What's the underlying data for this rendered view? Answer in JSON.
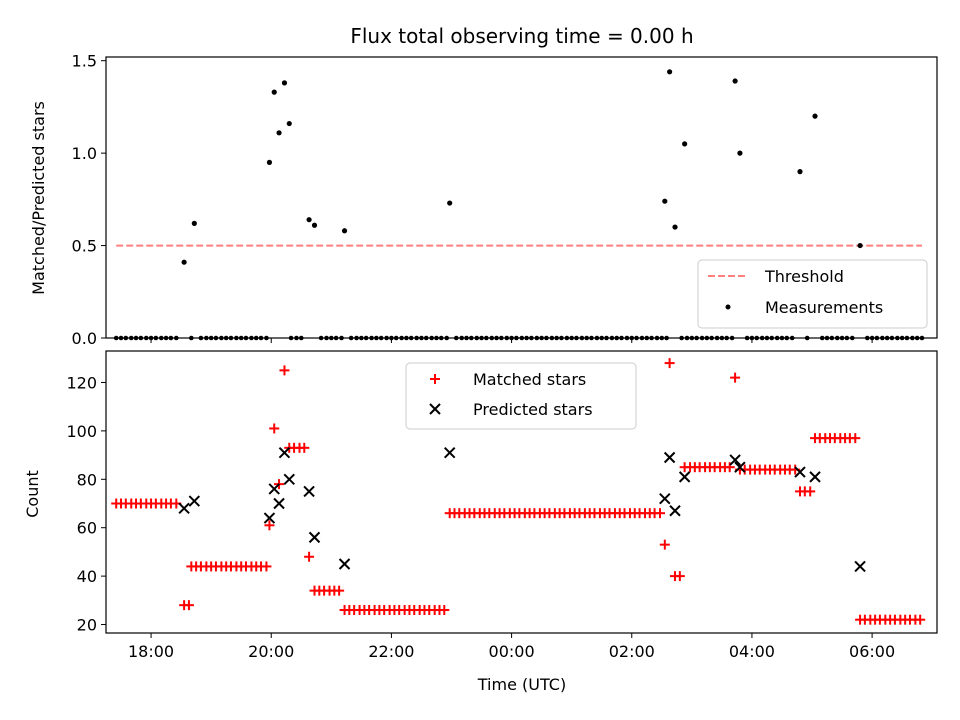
{
  "chart_data": [
    {
      "type": "scatter",
      "title": "Flux total observing time = 0.00 h",
      "xlabel": "",
      "ylabel": "Matched/Predicted stars",
      "xlim": [
        17.25,
        31.08
      ],
      "ylim": [
        0,
        1.52
      ],
      "yticks": [
        0.0,
        0.5,
        1.0,
        1.5
      ],
      "ytick_labels": [
        "0.0",
        "0.5",
        "1.0",
        "1.5"
      ],
      "legend_position": "lower right",
      "legend": [
        "Threshold",
        "Measurements"
      ],
      "threshold": {
        "name": "Threshold",
        "y": 0.5,
        "x_range": [
          17.42,
          30.83
        ],
        "color": "#ff7f7f",
        "style": "dashed"
      },
      "measurements": {
        "name": "Measurements",
        "color": "#000000",
        "zero_x": [
          17.42,
          17.5,
          17.58,
          17.67,
          17.75,
          17.83,
          17.92,
          18.0,
          18.08,
          18.17,
          18.25,
          18.33,
          18.42,
          18.67,
          18.83,
          18.92,
          19.0,
          19.08,
          19.17,
          19.25,
          19.33,
          19.42,
          19.5,
          19.58,
          19.67,
          19.75,
          19.83,
          19.92,
          20.33,
          20.42,
          20.5,
          20.83,
          20.92,
          21.0,
          21.08,
          21.17,
          21.33,
          21.42,
          21.5,
          21.58,
          21.67,
          21.75,
          21.83,
          21.92,
          22.0,
          22.08,
          22.17,
          22.25,
          22.33,
          22.42,
          22.5,
          22.58,
          22.67,
          22.75,
          22.83,
          22.92,
          23.08,
          23.17,
          23.25,
          23.33,
          23.42,
          23.5,
          23.58,
          23.67,
          23.75,
          23.83,
          23.92,
          24.0,
          24.08,
          24.17,
          24.25,
          24.33,
          24.42,
          24.5,
          24.58,
          24.67,
          24.75,
          24.83,
          24.92,
          25.0,
          25.08,
          25.17,
          25.25,
          25.33,
          25.42,
          25.5,
          25.58,
          25.67,
          25.75,
          25.83,
          25.92,
          26.0,
          26.08,
          26.17,
          26.25,
          26.33,
          26.42,
          26.5,
          26.58,
          26.83,
          26.92,
          27.0,
          27.08,
          27.17,
          27.25,
          27.33,
          27.42,
          27.5,
          27.58,
          27.67,
          27.92,
          28.0,
          28.08,
          28.17,
          28.25,
          28.33,
          28.42,
          28.5,
          28.58,
          28.67,
          28.92,
          29.17,
          29.25,
          29.33,
          29.42,
          29.5,
          29.58,
          29.67,
          29.92,
          30.0,
          30.08,
          30.17,
          30.25,
          30.33,
          30.42,
          30.5,
          30.58,
          30.67,
          30.75,
          30.83
        ],
        "points": [
          {
            "x": 18.55,
            "y": 0.41
          },
          {
            "x": 18.72,
            "y": 0.62
          },
          {
            "x": 19.97,
            "y": 0.95
          },
          {
            "x": 20.05,
            "y": 1.33
          },
          {
            "x": 20.13,
            "y": 1.11
          },
          {
            "x": 20.22,
            "y": 1.38
          },
          {
            "x": 20.3,
            "y": 1.16
          },
          {
            "x": 20.63,
            "y": 0.64
          },
          {
            "x": 20.72,
            "y": 0.61
          },
          {
            "x": 21.22,
            "y": 0.58
          },
          {
            "x": 22.97,
            "y": 0.73
          },
          {
            "x": 26.55,
            "y": 0.74
          },
          {
            "x": 26.63,
            "y": 1.44
          },
          {
            "x": 26.72,
            "y": 0.6
          },
          {
            "x": 26.88,
            "y": 1.05
          },
          {
            "x": 27.72,
            "y": 1.39
          },
          {
            "x": 27.8,
            "y": 1.0
          },
          {
            "x": 28.8,
            "y": 0.9
          },
          {
            "x": 29.05,
            "y": 1.2
          },
          {
            "x": 29.8,
            "y": 0.5
          }
        ]
      }
    },
    {
      "type": "scatter",
      "title": "",
      "xlabel": "Time (UTC)",
      "ylabel": "Count",
      "xlim": [
        17.25,
        31.08
      ],
      "ylim": [
        16.5,
        133.0
      ],
      "xticks": [
        18,
        20,
        22,
        24,
        26,
        28,
        30
      ],
      "xtick_labels": [
        "18:00",
        "20:00",
        "22:00",
        "00:00",
        "02:00",
        "04:00",
        "06:00"
      ],
      "yticks": [
        20,
        40,
        60,
        80,
        100,
        120
      ],
      "ytick_labels": [
        "20",
        "40",
        "60",
        "80",
        "100",
        "120"
      ],
      "legend_position": "upper center",
      "legend": [
        "Matched stars",
        "Predicted stars"
      ],
      "series": [
        {
          "name": "Matched stars",
          "marker": "+",
          "color": "#ff0000",
          "points": [
            {
              "x": 17.42,
              "y": 70
            },
            {
              "x": 17.5,
              "y": 70
            },
            {
              "x": 17.58,
              "y": 70
            },
            {
              "x": 17.67,
              "y": 70
            },
            {
              "x": 17.75,
              "y": 70
            },
            {
              "x": 17.83,
              "y": 70
            },
            {
              "x": 17.92,
              "y": 70
            },
            {
              "x": 18.0,
              "y": 70
            },
            {
              "x": 18.08,
              "y": 70
            },
            {
              "x": 18.17,
              "y": 70
            },
            {
              "x": 18.25,
              "y": 70
            },
            {
              "x": 18.33,
              "y": 70
            },
            {
              "x": 18.42,
              "y": 70
            },
            {
              "x": 18.55,
              "y": 28
            },
            {
              "x": 18.63,
              "y": 28
            },
            {
              "x": 18.67,
              "y": 44
            },
            {
              "x": 18.75,
              "y": 44
            },
            {
              "x": 18.83,
              "y": 44
            },
            {
              "x": 18.92,
              "y": 44
            },
            {
              "x": 19.0,
              "y": 44
            },
            {
              "x": 19.08,
              "y": 44
            },
            {
              "x": 19.17,
              "y": 44
            },
            {
              "x": 19.25,
              "y": 44
            },
            {
              "x": 19.33,
              "y": 44
            },
            {
              "x": 19.42,
              "y": 44
            },
            {
              "x": 19.5,
              "y": 44
            },
            {
              "x": 19.58,
              "y": 44
            },
            {
              "x": 19.67,
              "y": 44
            },
            {
              "x": 19.75,
              "y": 44
            },
            {
              "x": 19.83,
              "y": 44
            },
            {
              "x": 19.92,
              "y": 44
            },
            {
              "x": 19.97,
              "y": 61
            },
            {
              "x": 20.05,
              "y": 101
            },
            {
              "x": 20.13,
              "y": 78
            },
            {
              "x": 20.22,
              "y": 125
            },
            {
              "x": 20.3,
              "y": 93
            },
            {
              "x": 20.38,
              "y": 93
            },
            {
              "x": 20.47,
              "y": 93
            },
            {
              "x": 20.55,
              "y": 93
            },
            {
              "x": 20.63,
              "y": 48
            },
            {
              "x": 20.72,
              "y": 34
            },
            {
              "x": 20.8,
              "y": 34
            },
            {
              "x": 20.88,
              "y": 34
            },
            {
              "x": 20.97,
              "y": 34
            },
            {
              "x": 21.05,
              "y": 34
            },
            {
              "x": 21.13,
              "y": 34
            },
            {
              "x": 21.22,
              "y": 26
            },
            {
              "x": 21.3,
              "y": 26
            },
            {
              "x": 21.38,
              "y": 26
            },
            {
              "x": 21.47,
              "y": 26
            },
            {
              "x": 21.55,
              "y": 26
            },
            {
              "x": 21.63,
              "y": 26
            },
            {
              "x": 21.72,
              "y": 26
            },
            {
              "x": 21.8,
              "y": 26
            },
            {
              "x": 21.88,
              "y": 26
            },
            {
              "x": 21.97,
              "y": 26
            },
            {
              "x": 22.05,
              "y": 26
            },
            {
              "x": 22.13,
              "y": 26
            },
            {
              "x": 22.22,
              "y": 26
            },
            {
              "x": 22.3,
              "y": 26
            },
            {
              "x": 22.38,
              "y": 26
            },
            {
              "x": 22.47,
              "y": 26
            },
            {
              "x": 22.55,
              "y": 26
            },
            {
              "x": 22.63,
              "y": 26
            },
            {
              "x": 22.72,
              "y": 26
            },
            {
              "x": 22.8,
              "y": 26
            },
            {
              "x": 22.88,
              "y": 26
            },
            {
              "x": 22.97,
              "y": 66
            },
            {
              "x": 23.05,
              "y": 66
            },
            {
              "x": 23.13,
              "y": 66
            },
            {
              "x": 23.22,
              "y": 66
            },
            {
              "x": 23.3,
              "y": 66
            },
            {
              "x": 23.38,
              "y": 66
            },
            {
              "x": 23.47,
              "y": 66
            },
            {
              "x": 23.55,
              "y": 66
            },
            {
              "x": 23.63,
              "y": 66
            },
            {
              "x": 23.72,
              "y": 66
            },
            {
              "x": 23.8,
              "y": 66
            },
            {
              "x": 23.88,
              "y": 66
            },
            {
              "x": 23.97,
              "y": 66
            },
            {
              "x": 24.05,
              "y": 66
            },
            {
              "x": 24.13,
              "y": 66
            },
            {
              "x": 24.22,
              "y": 66
            },
            {
              "x": 24.3,
              "y": 66
            },
            {
              "x": 24.38,
              "y": 66
            },
            {
              "x": 24.47,
              "y": 66
            },
            {
              "x": 24.55,
              "y": 66
            },
            {
              "x": 24.63,
              "y": 66
            },
            {
              "x": 24.72,
              "y": 66
            },
            {
              "x": 24.8,
              "y": 66
            },
            {
              "x": 24.88,
              "y": 66
            },
            {
              "x": 24.97,
              "y": 66
            },
            {
              "x": 25.05,
              "y": 66
            },
            {
              "x": 25.13,
              "y": 66
            },
            {
              "x": 25.22,
              "y": 66
            },
            {
              "x": 25.3,
              "y": 66
            },
            {
              "x": 25.38,
              "y": 66
            },
            {
              "x": 25.47,
              "y": 66
            },
            {
              "x": 25.55,
              "y": 66
            },
            {
              "x": 25.63,
              "y": 66
            },
            {
              "x": 25.72,
              "y": 66
            },
            {
              "x": 25.8,
              "y": 66
            },
            {
              "x": 25.88,
              "y": 66
            },
            {
              "x": 25.97,
              "y": 66
            },
            {
              "x": 26.05,
              "y": 66
            },
            {
              "x": 26.13,
              "y": 66
            },
            {
              "x": 26.22,
              "y": 66
            },
            {
              "x": 26.3,
              "y": 66
            },
            {
              "x": 26.38,
              "y": 66
            },
            {
              "x": 26.47,
              "y": 66
            },
            {
              "x": 26.55,
              "y": 53
            },
            {
              "x": 26.63,
              "y": 128
            },
            {
              "x": 26.72,
              "y": 40
            },
            {
              "x": 26.8,
              "y": 40
            },
            {
              "x": 26.88,
              "y": 85
            },
            {
              "x": 26.97,
              "y": 85
            },
            {
              "x": 27.05,
              "y": 85
            },
            {
              "x": 27.13,
              "y": 85
            },
            {
              "x": 27.22,
              "y": 85
            },
            {
              "x": 27.3,
              "y": 85
            },
            {
              "x": 27.38,
              "y": 85
            },
            {
              "x": 27.47,
              "y": 85
            },
            {
              "x": 27.55,
              "y": 85
            },
            {
              "x": 27.63,
              "y": 85
            },
            {
              "x": 27.72,
              "y": 122
            },
            {
              "x": 27.8,
              "y": 84
            },
            {
              "x": 27.88,
              "y": 84
            },
            {
              "x": 27.97,
              "y": 84
            },
            {
              "x": 28.05,
              "y": 84
            },
            {
              "x": 28.13,
              "y": 84
            },
            {
              "x": 28.22,
              "y": 84
            },
            {
              "x": 28.3,
              "y": 84
            },
            {
              "x": 28.38,
              "y": 84
            },
            {
              "x": 28.47,
              "y": 84
            },
            {
              "x": 28.55,
              "y": 84
            },
            {
              "x": 28.63,
              "y": 84
            },
            {
              "x": 28.72,
              "y": 84
            },
            {
              "x": 28.8,
              "y": 75
            },
            {
              "x": 28.88,
              "y": 75
            },
            {
              "x": 28.97,
              "y": 75
            },
            {
              "x": 29.05,
              "y": 97
            },
            {
              "x": 29.13,
              "y": 97
            },
            {
              "x": 29.22,
              "y": 97
            },
            {
              "x": 29.3,
              "y": 97
            },
            {
              "x": 29.38,
              "y": 97
            },
            {
              "x": 29.47,
              "y": 97
            },
            {
              "x": 29.55,
              "y": 97
            },
            {
              "x": 29.63,
              "y": 97
            },
            {
              "x": 29.72,
              "y": 97
            },
            {
              "x": 29.8,
              "y": 22
            },
            {
              "x": 29.88,
              "y": 22
            },
            {
              "x": 29.97,
              "y": 22
            },
            {
              "x": 30.05,
              "y": 22
            },
            {
              "x": 30.13,
              "y": 22
            },
            {
              "x": 30.22,
              "y": 22
            },
            {
              "x": 30.3,
              "y": 22
            },
            {
              "x": 30.38,
              "y": 22
            },
            {
              "x": 30.47,
              "y": 22
            },
            {
              "x": 30.55,
              "y": 22
            },
            {
              "x": 30.63,
              "y": 22
            },
            {
              "x": 30.72,
              "y": 22
            },
            {
              "x": 30.8,
              "y": 22
            }
          ]
        },
        {
          "name": "Predicted stars",
          "marker": "x",
          "color": "#000000",
          "points": [
            {
              "x": 18.55,
              "y": 68
            },
            {
              "x": 18.72,
              "y": 71
            },
            {
              "x": 19.97,
              "y": 64
            },
            {
              "x": 20.05,
              "y": 76
            },
            {
              "x": 20.13,
              "y": 70
            },
            {
              "x": 20.22,
              "y": 91
            },
            {
              "x": 20.3,
              "y": 80
            },
            {
              "x": 20.63,
              "y": 75
            },
            {
              "x": 20.72,
              "y": 56
            },
            {
              "x": 21.22,
              "y": 45
            },
            {
              "x": 22.97,
              "y": 91
            },
            {
              "x": 26.55,
              "y": 72
            },
            {
              "x": 26.63,
              "y": 89
            },
            {
              "x": 26.72,
              "y": 67
            },
            {
              "x": 26.88,
              "y": 81
            },
            {
              "x": 27.72,
              "y": 88
            },
            {
              "x": 27.8,
              "y": 85
            },
            {
              "x": 28.8,
              "y": 83
            },
            {
              "x": 29.05,
              "y": 81
            },
            {
              "x": 29.8,
              "y": 44
            }
          ]
        }
      ]
    }
  ]
}
